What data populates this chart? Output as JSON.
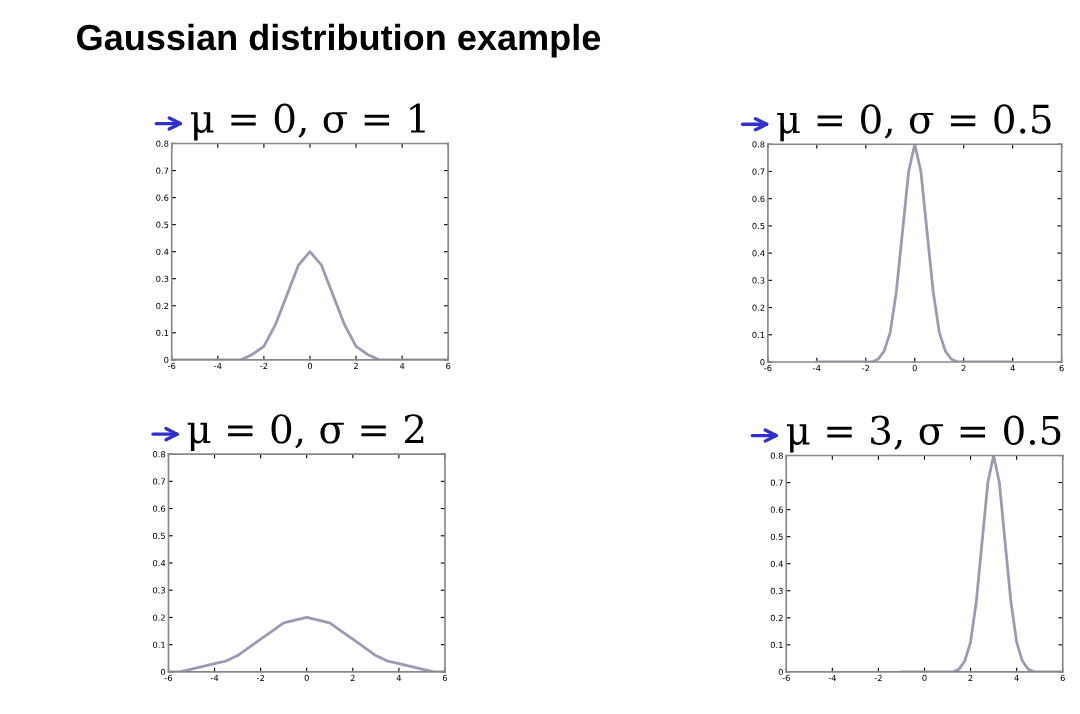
{
  "chart_data": [
    {
      "type": "line",
      "title": "μ = 0, σ = 1",
      "annotations": [
        "Gaussian distribution example"
      ],
      "x": [
        -6,
        -5,
        -4,
        -3.5,
        -3,
        -2.5,
        -2,
        -1.5,
        -1,
        -0.5,
        0,
        0.5,
        1,
        1.5,
        2,
        2.5,
        3,
        3.5,
        4,
        5,
        6
      ],
      "series": [
        {
          "color": "#9a9ab4",
          "values": [
            0,
            0,
            0,
            0,
            0,
            0.02,
            0.05,
            0.13,
            0.24,
            0.35,
            0.4,
            0.35,
            0.24,
            0.13,
            0.05,
            0.02,
            0,
            0,
            0,
            0,
            0
          ]
        }
      ],
      "xlim": [
        -6,
        6
      ],
      "xticks": [
        -6,
        -4,
        -2,
        0,
        2,
        4,
        6
      ],
      "ylim": [
        0,
        0.8
      ],
      "yticks": [
        0,
        0.1,
        0.2,
        0.3,
        0.4,
        0.5,
        0.6,
        0.7,
        0.8
      ],
      "grid": false,
      "marker": "none",
      "line_style": "solid"
    },
    {
      "type": "line",
      "title": "μ = 0, σ = 0.5",
      "x": [
        -4,
        -2,
        -1.75,
        -1.5,
        -1.25,
        -1,
        -0.75,
        -0.5,
        -0.25,
        0,
        0.25,
        0.5,
        0.75,
        1,
        1.25,
        1.5,
        1.75,
        2,
        4
      ],
      "series": [
        {
          "color": "#9a9ab4",
          "values": [
            0,
            0,
            0,
            0.01,
            0.04,
            0.11,
            0.26,
            0.48,
            0.7,
            0.8,
            0.7,
            0.48,
            0.26,
            0.11,
            0.04,
            0.01,
            0,
            0,
            0
          ]
        }
      ],
      "xlim": [
        -6,
        6
      ],
      "xticks": [
        -6,
        -4,
        -2,
        0,
        2,
        4,
        6
      ],
      "ylim": [
        0,
        0.8
      ],
      "yticks": [
        0,
        0.1,
        0.2,
        0.3,
        0.4,
        0.5,
        0.6,
        0.7,
        0.8
      ],
      "grid": false,
      "marker": "none",
      "line_style": "solid"
    },
    {
      "type": "line",
      "title": "μ = 0, σ = 2",
      "x": [
        -6,
        -5.5,
        -5,
        -4.5,
        -4,
        -3.5,
        -3,
        -2.5,
        -2,
        -1.5,
        -1,
        -0.5,
        0,
        0.5,
        1,
        1.5,
        2,
        2.5,
        3,
        3.5,
        4,
        4.5,
        5,
        5.5,
        6
      ],
      "series": [
        {
          "color": "#9a9ab4",
          "values": [
            0,
            0,
            0.01,
            0.02,
            0.03,
            0.04,
            0.06,
            0.09,
            0.12,
            0.15,
            0.18,
            0.19,
            0.2,
            0.19,
            0.18,
            0.15,
            0.12,
            0.09,
            0.06,
            0.04,
            0.03,
            0.02,
            0.01,
            0,
            0
          ]
        }
      ],
      "xlim": [
        -6,
        6
      ],
      "xticks": [
        -6,
        -4,
        -2,
        0,
        2,
        4,
        6
      ],
      "ylim": [
        0,
        0.8
      ],
      "yticks": [
        0,
        0.1,
        0.2,
        0.3,
        0.4,
        0.5,
        0.6,
        0.7,
        0.8
      ],
      "grid": false,
      "marker": "none",
      "line_style": "solid"
    },
    {
      "type": "line",
      "title": "μ = 3, σ = 0.5",
      "x": [
        -1,
        1,
        1.25,
        1.5,
        1.75,
        2,
        2.25,
        2.5,
        2.75,
        3,
        3.25,
        3.5,
        3.75,
        4,
        4.25,
        4.5,
        4.75,
        5,
        6
      ],
      "series": [
        {
          "color": "#9a9ab4",
          "values": [
            0,
            0,
            0,
            0.01,
            0.04,
            0.11,
            0.26,
            0.48,
            0.7,
            0.8,
            0.7,
            0.48,
            0.26,
            0.11,
            0.04,
            0.01,
            0,
            0,
            0
          ]
        }
      ],
      "xlim": [
        -6,
        6
      ],
      "xticks": [
        -6,
        -4,
        -2,
        0,
        2,
        4,
        6
      ],
      "ylim": [
        0,
        0.8
      ],
      "yticks": [
        0,
        0.1,
        0.2,
        0.3,
        0.4,
        0.5,
        0.6,
        0.7,
        0.8
      ],
      "grid": false,
      "marker": "none",
      "line_style": "solid"
    }
  ]
}
